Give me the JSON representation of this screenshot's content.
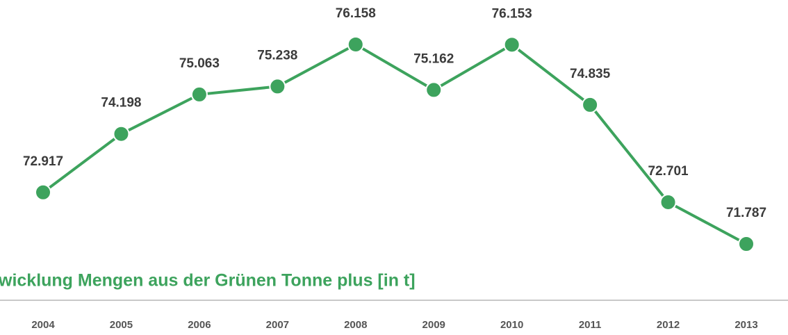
{
  "chart_data": {
    "type": "line",
    "title": "wicklung Mengen aus der Grünen Tonne plus [in t]",
    "categories": [
      "2004",
      "2005",
      "2006",
      "2007",
      "2008",
      "2009",
      "2010",
      "2011",
      "2012",
      "2013"
    ],
    "values": [
      72917,
      74198,
      75063,
      75238,
      76158,
      75162,
      76153,
      74835,
      72701,
      71787
    ],
    "value_labels": [
      "72.917",
      "74.198",
      "75.063",
      "75.238",
      "76.158",
      "75.162",
      "76.153",
      "74.835",
      "72.701",
      "71.787"
    ],
    "color": "#3da35d"
  }
}
